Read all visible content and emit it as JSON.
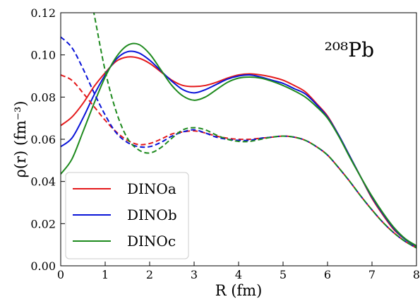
{
  "chart_data": {
    "type": "line",
    "xlabel": "R (fm)",
    "ylabel": "ρ(r) (fm⁻³)",
    "annotation": "²⁰⁸Pb",
    "xlim": [
      0,
      8
    ],
    "ylim": [
      0,
      0.12
    ],
    "xticks": [
      "0",
      "1",
      "2",
      "3",
      "4",
      "5",
      "6",
      "7",
      "8"
    ],
    "yticks": [
      "0.00",
      "0.02",
      "0.04",
      "0.06",
      "0.08",
      "0.10",
      "0.12"
    ],
    "grid": false,
    "legend_position": "lower-left",
    "legend": [
      {
        "name": "DINOa",
        "color": "#e41a1c"
      },
      {
        "name": "DINOb",
        "color": "#0a14d8"
      },
      {
        "name": "DINOc",
        "color": "#1e8a1e"
      }
    ],
    "x": [
      0,
      0.25,
      0.5,
      0.75,
      1,
      1.25,
      1.5,
      1.75,
      2,
      2.25,
      2.5,
      2.75,
      3,
      3.25,
      3.5,
      3.75,
      4,
      4.25,
      4.5,
      4.75,
      5,
      5.25,
      5.5,
      5.75,
      6,
      6.25,
      6.5,
      6.75,
      7,
      7.25,
      7.5,
      7.75,
      8
    ],
    "series": [
      {
        "name": "DINOa",
        "style": "solid",
        "color": "#e41a1c",
        "values": [
          0.0665,
          0.0705,
          0.077,
          0.085,
          0.0915,
          0.097,
          0.099,
          0.0985,
          0.096,
          0.092,
          0.088,
          0.0855,
          0.085,
          0.0855,
          0.087,
          0.089,
          0.0905,
          0.091,
          0.0905,
          0.0895,
          0.088,
          0.0855,
          0.0825,
          0.077,
          0.071,
          0.062,
          0.052,
          0.042,
          0.032,
          0.024,
          0.017,
          0.0125,
          0.009
        ]
      },
      {
        "name": "DINOb",
        "style": "solid",
        "color": "#0a14d8",
        "values": [
          0.0565,
          0.0605,
          0.07,
          0.081,
          0.0905,
          0.098,
          0.1015,
          0.101,
          0.0975,
          0.0925,
          0.0875,
          0.0835,
          0.082,
          0.0835,
          0.086,
          0.0885,
          0.09,
          0.0905,
          0.0895,
          0.088,
          0.0865,
          0.084,
          0.0815,
          0.0765,
          0.0705,
          0.062,
          0.052,
          0.042,
          0.0325,
          0.0245,
          0.0175,
          0.0125,
          0.0093
        ]
      },
      {
        "name": "DINOc",
        "style": "solid",
        "color": "#1e8a1e",
        "values": [
          0.0435,
          0.0505,
          0.0635,
          0.077,
          0.0895,
          0.099,
          0.1045,
          0.105,
          0.1005,
          0.093,
          0.0855,
          0.0805,
          0.0785,
          0.08,
          0.0835,
          0.087,
          0.089,
          0.0895,
          0.089,
          0.0875,
          0.0855,
          0.083,
          0.08,
          0.0755,
          0.07,
          0.0615,
          0.0515,
          0.042,
          0.033,
          0.025,
          0.018,
          0.0128,
          0.0095
        ]
      },
      {
        "name": "DINOa",
        "style": "dashed",
        "color": "#e41a1c",
        "values": [
          0.0905,
          0.088,
          0.082,
          0.0755,
          0.069,
          0.0635,
          0.0595,
          0.0575,
          0.058,
          0.06,
          0.0625,
          0.0635,
          0.064,
          0.063,
          0.0615,
          0.0605,
          0.06,
          0.06,
          0.0605,
          0.061,
          0.0615,
          0.061,
          0.0595,
          0.0565,
          0.0525,
          0.0465,
          0.04,
          0.033,
          0.0265,
          0.0205,
          0.0155,
          0.0115,
          0.0085
        ]
      },
      {
        "name": "DINOb",
        "style": "dashed",
        "color": "#0a14d8",
        "values": [
          0.1085,
          0.1035,
          0.0935,
          0.082,
          0.0715,
          0.063,
          0.0585,
          0.0565,
          0.0565,
          0.0585,
          0.0615,
          0.0635,
          0.0645,
          0.063,
          0.061,
          0.06,
          0.0595,
          0.0595,
          0.0605,
          0.061,
          0.0615,
          0.061,
          0.0595,
          0.0565,
          0.0525,
          0.0465,
          0.04,
          0.033,
          0.0265,
          0.0205,
          0.0155,
          0.0115,
          0.0085
        ]
      },
      {
        "name": "DINOc",
        "style": "dashed",
        "color": "#1e8a1e",
        "values": [
          null,
          null,
          null,
          0.1195,
          0.0925,
          0.073,
          0.0605,
          0.055,
          0.0535,
          0.056,
          0.0605,
          0.0645,
          0.0655,
          0.0645,
          0.062,
          0.06,
          0.059,
          0.059,
          0.06,
          0.061,
          0.0615,
          0.061,
          0.0595,
          0.0565,
          0.0525,
          0.0465,
          0.04,
          0.033,
          0.0265,
          0.0205,
          0.0155,
          0.0115,
          0.0085
        ]
      }
    ]
  }
}
